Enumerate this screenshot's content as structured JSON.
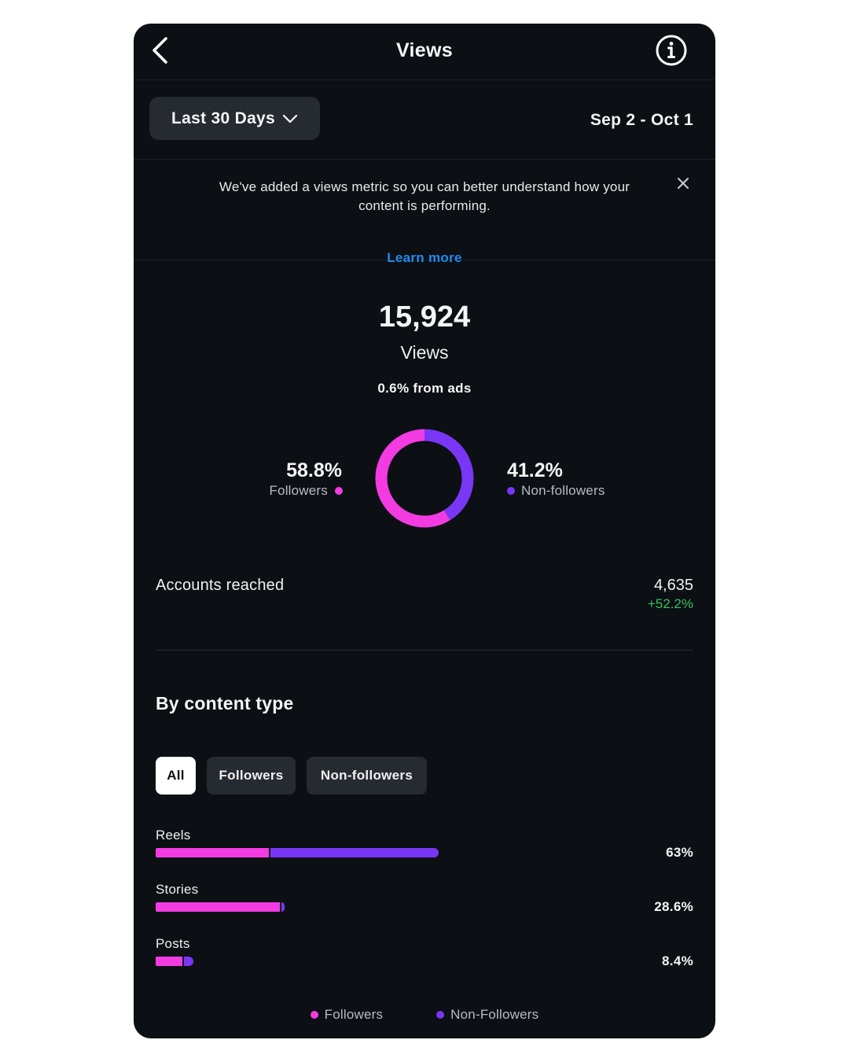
{
  "header": {
    "title": "Views",
    "back_icon": "chevron-left-icon",
    "info_icon": "info-icon"
  },
  "date_filter": {
    "selected": "Last 30 Days",
    "range": "Sep 2 - Oct 1"
  },
  "notice": {
    "text": "We've added a views metric so you can better understand how your content is performing.",
    "link": "Learn more"
  },
  "summary": {
    "total": "15,924",
    "label": "Views",
    "ads_share": "0.6% from ads"
  },
  "audience_split": {
    "followers": {
      "pct": "58.8%",
      "label": "Followers",
      "value": 58.8
    },
    "non_followers": {
      "pct": "41.2%",
      "label": "Non-followers",
      "value": 41.2
    }
  },
  "accounts_reached": {
    "label": "Accounts reached",
    "value": "4,635",
    "change": "+52.2%"
  },
  "content_type": {
    "title": "By content type",
    "filters": [
      "All",
      "Followers",
      "Non-followers"
    ],
    "active_filter": "All",
    "rows": [
      {
        "label": "Reels",
        "pct": "63%",
        "total": 63,
        "followers": 25.1,
        "non_followers": 37.9
      },
      {
        "label": "Stories",
        "pct": "28.6%",
        "total": 28.6,
        "followers": 27.7,
        "non_followers": 0.9
      },
      {
        "label": "Posts",
        "pct": "8.4%",
        "total": 8.4,
        "followers": 6.0,
        "non_followers": 2.4
      }
    ],
    "legend": [
      "Followers",
      "Non-Followers"
    ]
  },
  "colors": {
    "followers": "#f23ce2",
    "non_followers": "#7a36f5",
    "positive": "#35c25f",
    "link": "#1f8bf0",
    "background": "#0c0f14"
  }
}
